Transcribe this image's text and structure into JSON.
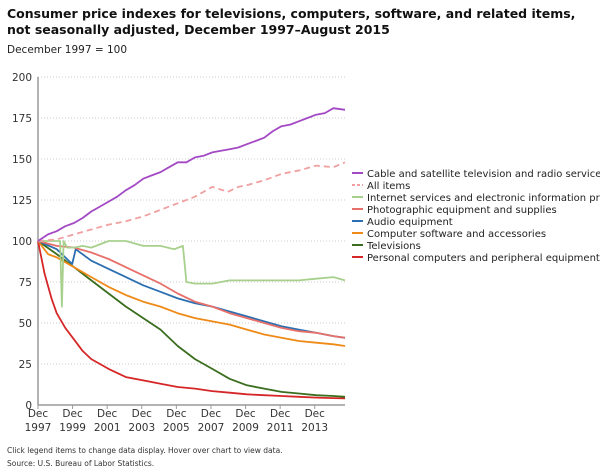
{
  "title": "Consumer price indexes for televisions, computers, software, and related items, not seasonally adjusted, December 1997–August 2015",
  "subtitle": "December 1997 = 100",
  "footer": {
    "note": "Click legend items to change data display. Hover over chart to view data.",
    "source": "Source: U.S. Bureau of Labor Statistics."
  },
  "chart_data": {
    "type": "line",
    "title": "Consumer price indexes for televisions, computers, software, and related items, not seasonally adjusted, December 1997–August 2015",
    "subtitle": "December 1997 = 100",
    "xlabel": "",
    "ylabel": "",
    "ylim": [
      0,
      200
    ],
    "xlim": [
      1997.92,
      2015.67
    ],
    "yticks": [
      0,
      25,
      50,
      75,
      100,
      125,
      150,
      175,
      200
    ],
    "xticks": [
      {
        "line1": "Dec",
        "line2": "1997",
        "x": 1997.92
      },
      {
        "line1": "Dec",
        "line2": "1999",
        "x": 1999.92
      },
      {
        "line1": "Dec",
        "line2": "2001",
        "x": 2001.92
      },
      {
        "line1": "Dec",
        "line2": "2003",
        "x": 2003.92
      },
      {
        "line1": "Dec",
        "line2": "2005",
        "x": 2005.92
      },
      {
        "line1": "Dec",
        "line2": "2007",
        "x": 2007.92
      },
      {
        "line1": "Dec",
        "line2": "2009",
        "x": 2009.92
      },
      {
        "line1": "Dec",
        "line2": "2011",
        "x": 2011.92
      },
      {
        "line1": "Dec",
        "line2": "2013",
        "x": 2013.92
      }
    ],
    "grid": true,
    "legend_position": "right",
    "series": [
      {
        "name": "Cable and satellite television and radio service",
        "color": "#a349c4",
        "dashed": false,
        "x": [
          1997.92,
          1998.5,
          1999,
          1999.5,
          2000,
          2000.5,
          2001,
          2001.5,
          2002,
          2002.5,
          2003,
          2003.5,
          2004,
          2004.5,
          2005,
          2005.5,
          2006,
          2006.5,
          2007,
          2007.5,
          2008,
          2008.5,
          2009,
          2009.5,
          2010,
          2010.5,
          2011,
          2011.5,
          2012,
          2012.5,
          2013,
          2013.5,
          2014,
          2014.5,
          2015,
          2015.67
        ],
        "values": [
          100,
          104,
          106,
          109,
          111,
          114,
          118,
          121,
          124,
          127,
          131,
          134,
          138,
          140,
          142,
          145,
          148,
          148,
          151,
          152,
          154,
          155,
          156,
          157,
          159,
          161,
          163,
          167,
          170,
          171,
          173,
          175,
          177,
          178,
          181,
          180
        ]
      },
      {
        "name": "All items",
        "color": "#f0a0a0",
        "dashed": true,
        "x": [
          1997.92,
          1999,
          2000,
          2001,
          2002,
          2003,
          2004,
          2005,
          2006,
          2007,
          2008,
          2008.9,
          2009.5,
          2010,
          2011,
          2012,
          2013,
          2014,
          2015,
          2015.67
        ],
        "values": [
          100,
          101,
          104,
          107,
          110,
          112,
          115,
          119,
          123,
          127,
          133,
          130,
          133,
          134,
          137,
          141,
          143,
          146,
          145,
          148
        ]
      },
      {
        "name": "Internet services and electronic information providers",
        "color": "#a8d08d",
        "dashed": false,
        "x": [
          1997.92,
          1998.5,
          1999.2,
          1999.3,
          1999.4,
          1999.6,
          2000,
          2000.5,
          2001,
          2002,
          2003,
          2004,
          2005,
          2005.8,
          2006.3,
          2006.5,
          2007,
          2008,
          2009,
          2010,
          2011,
          2012,
          2013,
          2014,
          2015,
          2015.67
        ],
        "values": [
          100,
          100,
          100,
          60,
          100,
          96,
          96,
          97,
          96,
          100,
          100,
          97,
          97,
          95,
          97,
          75,
          74,
          74,
          76,
          76,
          76,
          76,
          76,
          77,
          78,
          76
        ]
      },
      {
        "name": "Photographic equipment and supplies",
        "color": "#e8706a",
        "dashed": false,
        "x": [
          1997.92,
          1999,
          2000,
          2001,
          2002,
          2003,
          2004,
          2005,
          2006,
          2007,
          2008,
          2009,
          2010,
          2011,
          2012,
          2013,
          2014,
          2015,
          2015.67
        ],
        "values": [
          100,
          97,
          96,
          93,
          89,
          84,
          79,
          74,
          68,
          63,
          60,
          56,
          53,
          50,
          47,
          45,
          44,
          42,
          41
        ]
      },
      {
        "name": "Audio equipment",
        "color": "#2c6fb0",
        "dashed": false,
        "x": [
          1997.92,
          1999,
          1999.9,
          2000.1,
          2001,
          2002,
          2003,
          2004,
          2005,
          2006,
          2007,
          2008,
          2009,
          2010,
          2011,
          2012,
          2013,
          2014,
          2015,
          2015.67
        ],
        "values": [
          100,
          95,
          86,
          95,
          88,
          83,
          78,
          73,
          69,
          65,
          62,
          60,
          57,
          54,
          51,
          48,
          46,
          44,
          42,
          41
        ]
      },
      {
        "name": "Computer software and accessories",
        "color": "#ef8a17",
        "dashed": false,
        "x": [
          1997.92,
          1998.5,
          1999,
          2000,
          2001,
          2002,
          2003,
          2004,
          2005,
          2006,
          2007,
          2008,
          2009,
          2010,
          2011,
          2012,
          2013,
          2014,
          2015,
          2015.67
        ],
        "values": [
          100,
          92,
          90,
          84,
          78,
          72,
          67,
          63,
          60,
          56,
          53,
          51,
          49,
          46,
          43,
          41,
          39,
          38,
          37,
          36
        ]
      },
      {
        "name": "Televisions",
        "color": "#3a6e1e",
        "dashed": false,
        "x": [
          1997.92,
          1999,
          2000,
          2001,
          2002,
          2003,
          2004,
          2005,
          2006,
          2007,
          2008,
          2009,
          2010,
          2011,
          2012,
          2013,
          2014,
          2015,
          2015.67
        ],
        "values": [
          100,
          92,
          84,
          76,
          68,
          60,
          53,
          46,
          36,
          28,
          22,
          16,
          12,
          10,
          8,
          7,
          6,
          5.5,
          5
        ]
      },
      {
        "name": "Personal computers and peripheral equipment",
        "color": "#d62728",
        "dashed": false,
        "x": [
          1997.92,
          1998.3,
          1998.7,
          1999,
          1999.5,
          2000,
          2000.5,
          2001,
          2002,
          2003,
          2004,
          2005,
          2006,
          2007,
          2008,
          2009,
          2010,
          2011,
          2012,
          2013,
          2014,
          2015,
          2015.67
        ],
        "values": [
          100,
          80,
          65,
          56,
          47,
          40,
          33,
          28,
          22,
          17,
          15,
          13,
          11,
          10,
          8.5,
          7.5,
          6.5,
          6,
          5.5,
          5,
          4.5,
          4.2,
          4
        ]
      }
    ]
  }
}
